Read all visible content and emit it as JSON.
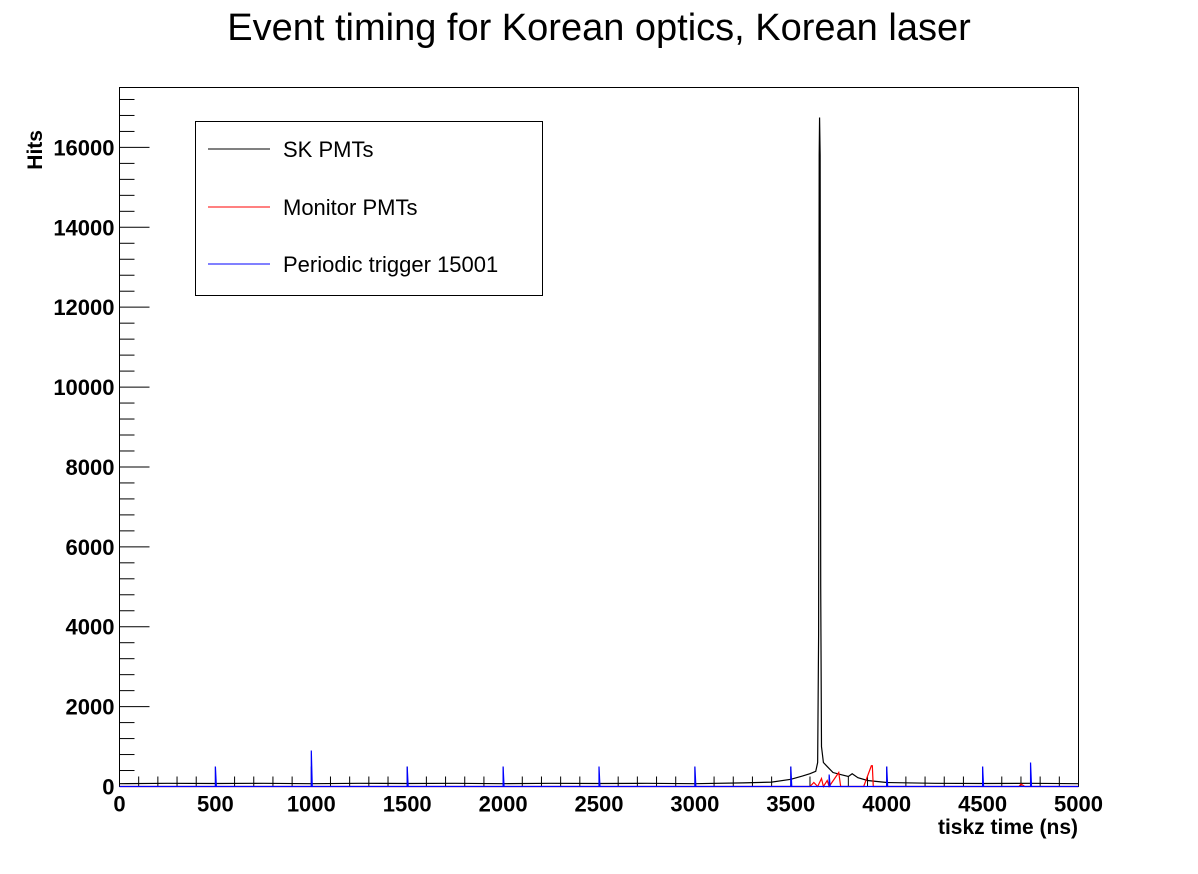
{
  "chart_data": {
    "type": "line",
    "title": "Event timing for Korean optics, Korean laser",
    "xlabel": "tiskz time (ns)",
    "ylabel": "Hits",
    "xlim": [
      0,
      5000
    ],
    "ylim": [
      0,
      17500
    ],
    "x_ticks": [
      "0",
      "500",
      "1000",
      "1500",
      "2000",
      "2500",
      "3000",
      "3500",
      "4000",
      "4500",
      "5000"
    ],
    "y_ticks": [
      "0",
      "2000",
      "4000",
      "6000",
      "8000",
      "10000",
      "12000",
      "14000",
      "16000"
    ],
    "grid": false,
    "legend_position": "top-left",
    "series": [
      {
        "name": "SK PMTs",
        "color": "#000000",
        "points": [
          [
            0,
            70
          ],
          [
            250,
            80
          ],
          [
            500,
            75
          ],
          [
            750,
            80
          ],
          [
            1000,
            70
          ],
          [
            1250,
            80
          ],
          [
            1500,
            75
          ],
          [
            1750,
            80
          ],
          [
            2000,
            70
          ],
          [
            2250,
            80
          ],
          [
            2500,
            75
          ],
          [
            2750,
            80
          ],
          [
            3000,
            70
          ],
          [
            3250,
            90
          ],
          [
            3400,
            110
          ],
          [
            3500,
            180
          ],
          [
            3560,
            260
          ],
          [
            3600,
            320
          ],
          [
            3630,
            380
          ],
          [
            3640,
            600
          ],
          [
            3645,
            3800
          ],
          [
            3648,
            15800
          ],
          [
            3650,
            16750
          ],
          [
            3653,
            15800
          ],
          [
            3656,
            5000
          ],
          [
            3660,
            1000
          ],
          [
            3670,
            600
          ],
          [
            3690,
            500
          ],
          [
            3720,
            350
          ],
          [
            3760,
            300
          ],
          [
            3800,
            250
          ],
          [
            3820,
            320
          ],
          [
            3850,
            220
          ],
          [
            3900,
            150
          ],
          [
            4000,
            100
          ],
          [
            4250,
            80
          ],
          [
            4500,
            75
          ],
          [
            4750,
            80
          ],
          [
            5000,
            70
          ]
        ]
      },
      {
        "name": "Monitor PMTs",
        "color": "#ff0000",
        "points": [
          [
            0,
            0
          ],
          [
            3600,
            0
          ],
          [
            3620,
            100
          ],
          [
            3640,
            0
          ],
          [
            3660,
            200
          ],
          [
            3670,
            0
          ],
          [
            3690,
            150
          ],
          [
            3700,
            0
          ],
          [
            3750,
            350
          ],
          [
            3760,
            0
          ],
          [
            3880,
            0
          ],
          [
            3920,
            520
          ],
          [
            3925,
            520
          ],
          [
            3930,
            0
          ],
          [
            4690,
            0
          ],
          [
            4700,
            60
          ],
          [
            4720,
            0
          ],
          [
            5000,
            0
          ]
        ]
      },
      {
        "name": "Periodic trigger 15001",
        "color": "#0000ff",
        "points": [
          [
            0,
            0
          ],
          [
            500,
            0
          ],
          [
            500,
            500
          ],
          [
            505,
            0
          ],
          [
            1000,
            0
          ],
          [
            1000,
            900
          ],
          [
            1005,
            0
          ],
          [
            1500,
            0
          ],
          [
            1500,
            500
          ],
          [
            1505,
            0
          ],
          [
            2000,
            0
          ],
          [
            2000,
            500
          ],
          [
            2005,
            0
          ],
          [
            2500,
            0
          ],
          [
            2500,
            500
          ],
          [
            2505,
            0
          ],
          [
            3000,
            0
          ],
          [
            3000,
            500
          ],
          [
            3005,
            0
          ],
          [
            3500,
            0
          ],
          [
            3500,
            500
          ],
          [
            3505,
            0
          ],
          [
            3700,
            0
          ],
          [
            3700,
            300
          ],
          [
            3705,
            0
          ],
          [
            4000,
            0
          ],
          [
            4000,
            500
          ],
          [
            4005,
            0
          ],
          [
            4500,
            0
          ],
          [
            4500,
            500
          ],
          [
            4505,
            0
          ],
          [
            4750,
            0
          ],
          [
            4750,
            600
          ],
          [
            4755,
            0
          ],
          [
            5000,
            0
          ]
        ]
      }
    ]
  }
}
